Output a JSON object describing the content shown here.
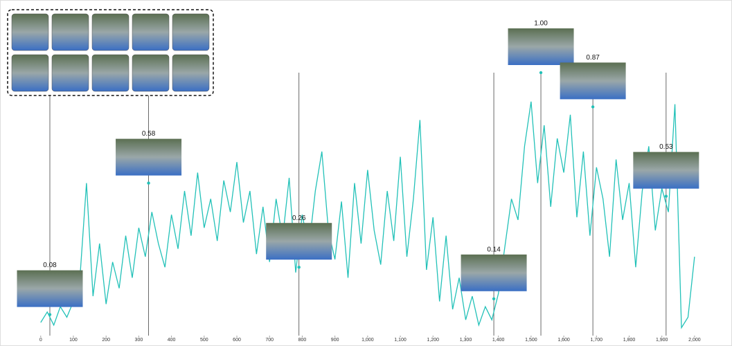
{
  "chart_data": {
    "type": "line",
    "x": [
      0,
      20,
      40,
      60,
      80,
      100,
      120,
      140,
      160,
      180,
      200,
      220,
      240,
      260,
      280,
      300,
      320,
      340,
      360,
      380,
      400,
      420,
      440,
      460,
      480,
      500,
      520,
      540,
      560,
      580,
      600,
      620,
      640,
      660,
      680,
      700,
      720,
      740,
      760,
      780,
      800,
      820,
      840,
      860,
      880,
      900,
      920,
      940,
      960,
      980,
      1000,
      1020,
      1040,
      1060,
      1080,
      1100,
      1120,
      1140,
      1160,
      1180,
      1200,
      1220,
      1240,
      1260,
      1280,
      1300,
      1320,
      1340,
      1360,
      1380,
      1400,
      1420,
      1440,
      1460,
      1480,
      1500,
      1520,
      1540,
      1560,
      1580,
      1600,
      1620,
      1640,
      1660,
      1680,
      1700,
      1720,
      1740,
      1760,
      1780,
      1800,
      1820,
      1840,
      1860,
      1880,
      1900,
      1920,
      1940,
      1960,
      1980,
      2000
    ],
    "values": [
      0.05,
      0.09,
      0.04,
      0.11,
      0.07,
      0.13,
      0.22,
      0.58,
      0.15,
      0.35,
      0.12,
      0.28,
      0.18,
      0.38,
      0.22,
      0.41,
      0.3,
      0.47,
      0.35,
      0.26,
      0.46,
      0.33,
      0.55,
      0.38,
      0.62,
      0.41,
      0.52,
      0.36,
      0.59,
      0.47,
      0.66,
      0.43,
      0.55,
      0.31,
      0.49,
      0.28,
      0.52,
      0.37,
      0.6,
      0.24,
      0.46,
      0.33,
      0.55,
      0.7,
      0.4,
      0.29,
      0.51,
      0.22,
      0.58,
      0.35,
      0.63,
      0.4,
      0.27,
      0.55,
      0.36,
      0.68,
      0.3,
      0.52,
      0.82,
      0.25,
      0.45,
      0.13,
      0.38,
      0.1,
      0.22,
      0.06,
      0.15,
      0.04,
      0.11,
      0.06,
      0.16,
      0.34,
      0.52,
      0.44,
      0.72,
      0.89,
      0.58,
      0.8,
      0.49,
      0.75,
      0.62,
      0.84,
      0.45,
      0.7,
      0.38,
      0.64,
      0.52,
      0.3,
      0.67,
      0.44,
      0.58,
      0.26,
      0.55,
      0.72,
      0.4,
      0.56,
      0.47,
      0.88,
      0.03,
      0.07,
      0.3
    ],
    "color": "#22c1b8",
    "xlim": [
      -8,
      2015
    ],
    "ylim": [
      0,
      1
    ],
    "xticks": [
      0,
      100,
      200,
      300,
      400,
      500,
      600,
      700,
      800,
      900,
      {
        "value": 1000,
        "label": "1,000"
      },
      {
        "value": 1100,
        "label": "1,100"
      },
      {
        "value": 1200,
        "label": "1,200"
      },
      {
        "value": 1300,
        "label": "1,300"
      },
      {
        "value": 1400,
        "label": "1,400"
      },
      {
        "value": 1500,
        "label": "1,500"
      },
      {
        "value": 1600,
        "label": "1,600"
      },
      {
        "value": 1700,
        "label": "1,700"
      },
      {
        "value": 1800,
        "label": "1,800"
      },
      {
        "value": 1900,
        "label": "1,900"
      },
      {
        "value": 2000,
        "label": "2,000"
      }
    ],
    "annotations": {
      "x": [
        28,
        330,
        790,
        1386,
        1530,
        1689,
        1913
      ],
      "values": [
        0.08,
        0.58,
        0.26,
        0.14,
        1.0,
        0.87,
        0.53
      ],
      "value_labels": [
        "0.08",
        "0.58",
        "0.26",
        "0.14",
        "1.00",
        "0.87",
        "0.53"
      ]
    }
  }
}
